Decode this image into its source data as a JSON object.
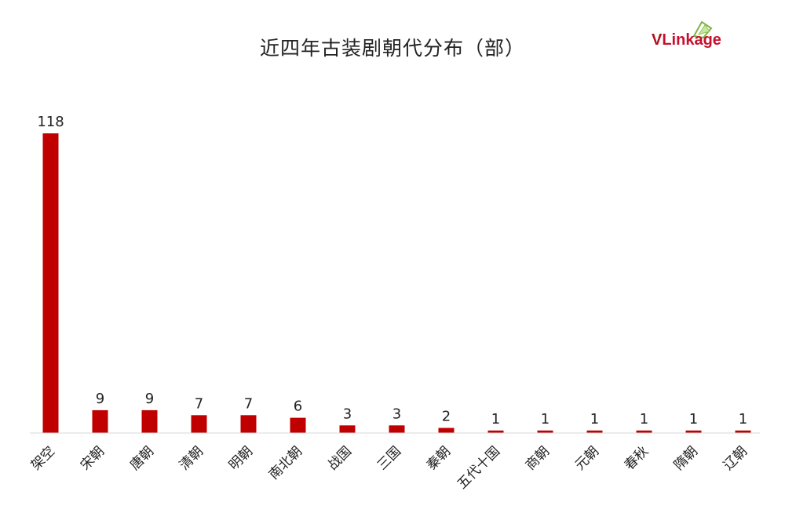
{
  "logo": {
    "text_v": "V",
    "text_rest": "Link",
    "text_end": "age"
  },
  "chart_data": {
    "type": "bar",
    "title": "近四年古装剧朝代分布（部）",
    "categories": [
      "架空",
      "宋朝",
      "唐朝",
      "清朝",
      "明朝",
      "南北朝",
      "战国",
      "三国",
      "秦朝",
      "五代十国",
      "商朝",
      "元朝",
      "春秋",
      "隋朝",
      "辽朝"
    ],
    "values": [
      118,
      9,
      9,
      7,
      7,
      6,
      3,
      3,
      2,
      1,
      1,
      1,
      1,
      1,
      1
    ],
    "xlabel": "",
    "ylabel": "",
    "ylim": [
      0,
      118
    ],
    "grid": false,
    "bar_color": "#c00000"
  }
}
